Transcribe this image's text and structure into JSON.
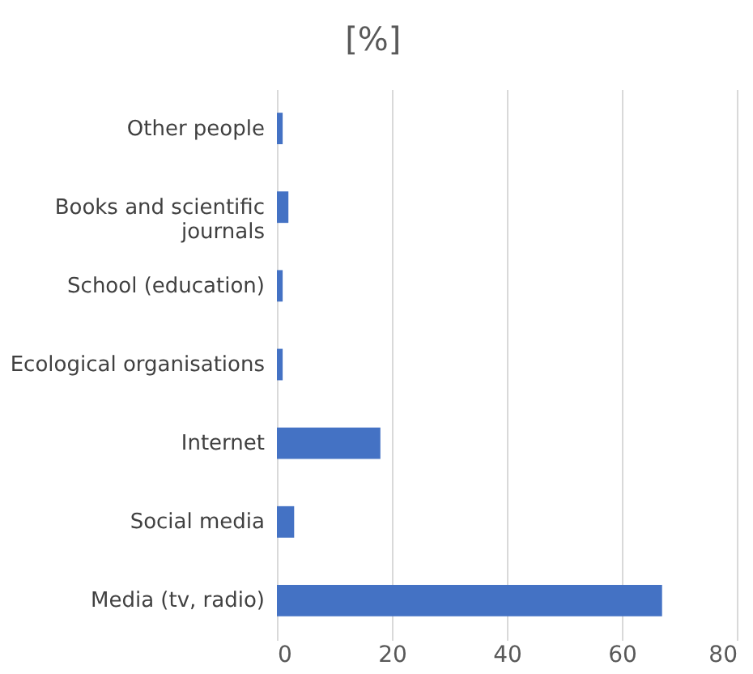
{
  "chart_data": {
    "type": "bar",
    "orientation": "horizontal",
    "title": "[%]",
    "categories": [
      "Other people",
      "Books and scientific journals",
      "School (education)",
      "Ecological organisations",
      "Internet",
      "Social media",
      "Media (tv, radio)"
    ],
    "values": [
      1,
      2,
      1,
      1,
      18,
      3,
      67
    ],
    "color": "#4472c4",
    "xlim": [
      0,
      80
    ],
    "xticks": [
      0,
      20,
      40,
      60,
      80
    ],
    "grid": "x"
  }
}
